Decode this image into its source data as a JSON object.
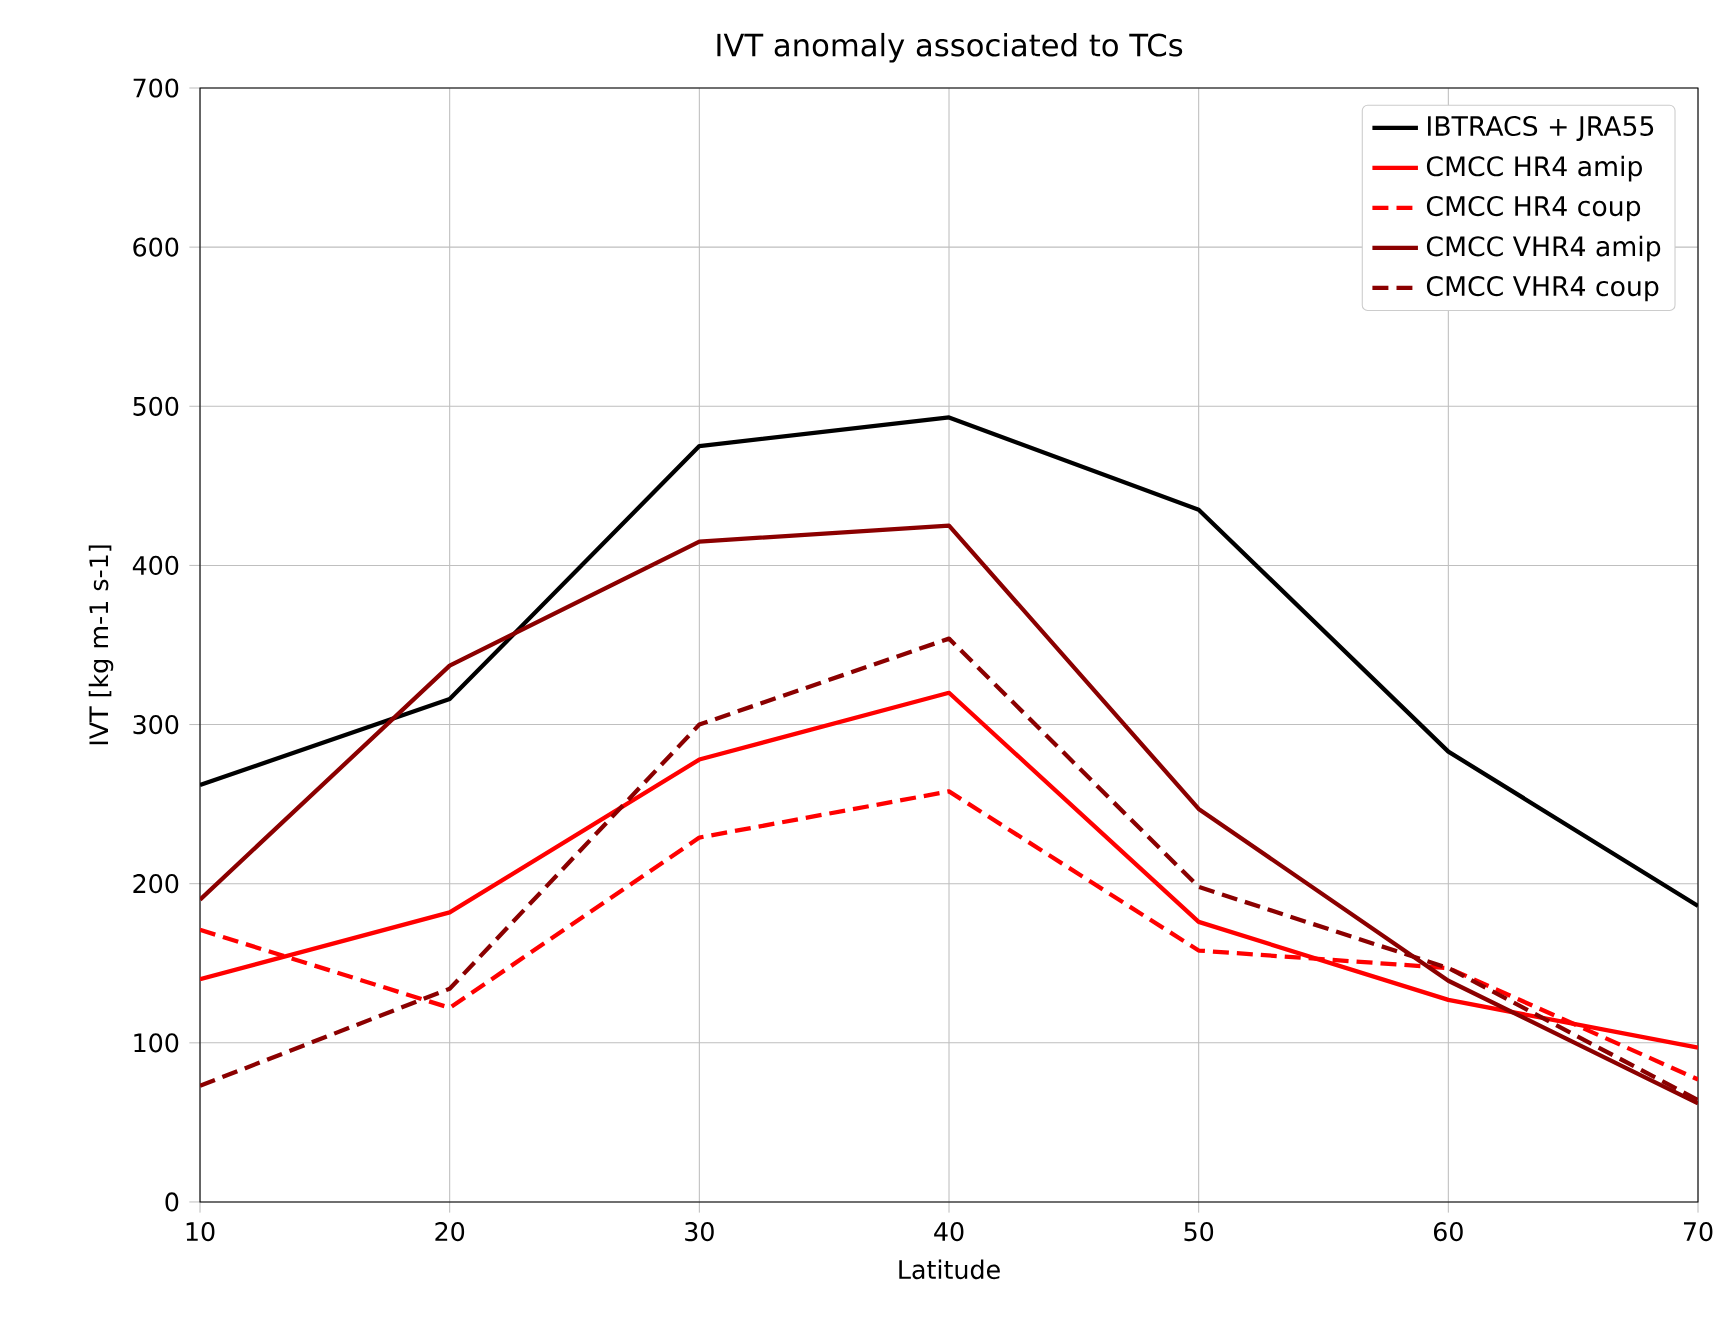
{
  "chart_data": {
    "type": "line",
    "title": "IVT anomaly associated to TCs",
    "xlabel": "Latitude",
    "ylabel": "IVT [kg m-1 s-1]",
    "x": [
      10,
      20,
      30,
      40,
      50,
      60,
      70
    ],
    "series": [
      {
        "name": "IBTRACS + JRA55",
        "color": "#000000",
        "line_style": "solid",
        "values": [
          262,
          316,
          475,
          493,
          435,
          283,
          186
        ]
      },
      {
        "name": "CMCC HR4 amip",
        "color": "#ff0000",
        "line_style": "solid",
        "values": [
          140,
          182,
          278,
          320,
          176,
          127,
          97
        ]
      },
      {
        "name": "CMCC HR4 coup",
        "color": "#ff0000",
        "line_style": "dashed",
        "values": [
          171,
          122,
          229,
          258,
          158,
          147,
          77
        ]
      },
      {
        "name": "CMCC VHR4 amip",
        "color": "#8b0000",
        "line_style": "solid",
        "values": [
          190,
          337,
          415,
          425,
          247,
          139,
          62
        ]
      },
      {
        "name": "CMCC VHR4 coup",
        "color": "#8b0000",
        "line_style": "dashed",
        "values": [
          73,
          134,
          300,
          354,
          198,
          147,
          64
        ]
      }
    ],
    "xlim": [
      10,
      70
    ],
    "ylim": [
      0,
      700
    ],
    "xticks": [
      10,
      20,
      30,
      40,
      50,
      60,
      70
    ],
    "yticks": [
      0,
      100,
      200,
      300,
      400,
      500,
      600,
      700
    ],
    "grid": true,
    "legend": "top right"
  }
}
